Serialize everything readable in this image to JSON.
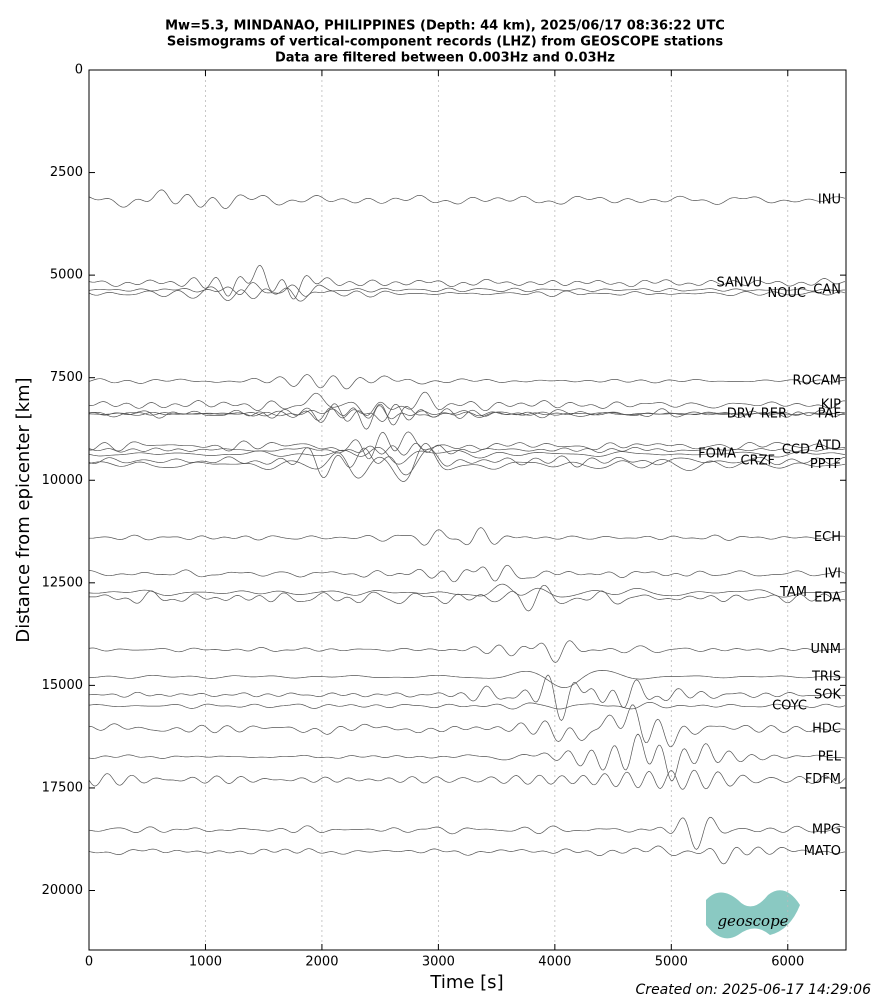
{
  "chart_data": {
    "type": "seismogram",
    "title": [
      "Mw=5.3, MINDANAO, PHILIPPINES (Depth: 44 km), 2025/06/17 08:36:22 UTC",
      "Seismograms of vertical-component records (LHZ) from GEOSCOPE stations",
      "Data are filtered between 0.003Hz and 0.03Hz"
    ],
    "xlabel": "Time [s]",
    "ylabel": "Distance from epicenter [km]",
    "xlim": [
      0,
      6500
    ],
    "xticks": [
      0,
      1000,
      2000,
      3000,
      4000,
      5000,
      6000
    ],
    "ylim": [
      0,
      21450
    ],
    "yticks": [
      0,
      2500,
      5000,
      7500,
      10000,
      12500,
      15000,
      17500,
      20000
    ],
    "y_inverted": true,
    "grid": true,
    "color": "#555555",
    "categories": [
      "INU",
      "SANVU",
      "CAN",
      "NOUC",
      "ROCAM",
      "KIP",
      "DRV",
      "RER",
      "PAF",
      "ATD",
      "CCD",
      "FOMA",
      "CRZF",
      "PPTF",
      "ECH",
      "IVI",
      "TAM",
      "EDA",
      "UNM",
      "TRIS",
      "SOK",
      "COYC",
      "HDC",
      "PEL",
      "FDFM",
      "MPG",
      "MATO"
    ],
    "values": [
      3170,
      5190,
      5360,
      5450,
      7580,
      8160,
      8380,
      8380,
      8380,
      9160,
      9260,
      9360,
      9530,
      9620,
      11400,
      12280,
      12740,
      12870,
      14130,
      14790,
      15230,
      15500,
      16060,
      16740,
      17300,
      18520,
      19050
    ],
    "footer": "Created on: 2025-06-17 14:29:06",
    "logo": "geoscope"
  }
}
